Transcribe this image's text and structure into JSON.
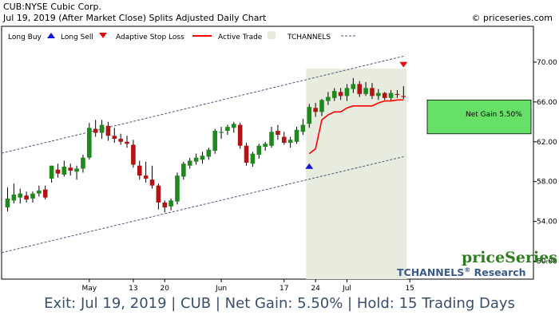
{
  "header": {
    "title": "CUB:NYSE Cubic Corp.",
    "subtitle": "Jul 19, 2019 (After Market Close)  Splits Adjusted Daily Chart",
    "copyright": "© priceseries.com"
  },
  "legend": {
    "long_buy": "Long Buy",
    "long_sell": "Long Sell",
    "adaptive_stop": "Adaptive Stop Loss",
    "active_trade": "Active Trade",
    "tchannels": "TCHANNELS"
  },
  "gain_label": "Net Gain 5.50%",
  "brand": {
    "name": "priceSeries",
    "research": "TCHANNELS",
    "research_sup": "®",
    "research_suffix": " Research"
  },
  "footer": "Exit: Jul 19, 2019 | CUB | Net Gain: 5.50% | Hold: 15 Trading Days",
  "colors": {
    "up": "#1e8a1e",
    "down": "#b01414",
    "stop": "#ff0000",
    "channel": "#4a5a7a",
    "active_bg": "#e7ecdf",
    "gain_fill": "#66e066"
  },
  "chart_data": {
    "type": "candlestick",
    "x_labels": [
      {
        "i": 13,
        "label": "May"
      },
      {
        "i": 20,
        "label": "13"
      },
      {
        "i": 25,
        "label": "20"
      },
      {
        "i": 34,
        "label": "Jun"
      },
      {
        "i": 44,
        "label": "17"
      },
      {
        "i": 49,
        "label": "24"
      },
      {
        "i": 54,
        "label": "Jul"
      },
      {
        "i": 64,
        "label": "15"
      }
    ],
    "y_ticks": [
      "50.00",
      "54.00",
      "58.00",
      "62.00",
      "66.00",
      "70.00"
    ],
    "ylim": [
      48.2,
      73.6
    ],
    "candles": [
      [
        55.4,
        57.4,
        55.0,
        56.3
      ],
      [
        56.1,
        57.8,
        55.8,
        56.7
      ],
      [
        56.4,
        57.3,
        55.8,
        56.8
      ],
      [
        56.6,
        57.0,
        55.9,
        56.2
      ],
      [
        56.3,
        57.0,
        55.9,
        56.8
      ],
      [
        56.8,
        57.6,
        56.5,
        57.1
      ],
      [
        57.2,
        57.6,
        56.2,
        56.4
      ],
      [
        58.3,
        59.6,
        57.9,
        59.6
      ],
      [
        59.2,
        59.8,
        58.4,
        58.8
      ],
      [
        58.7,
        60.1,
        58.5,
        59.5
      ],
      [
        59.4,
        59.8,
        58.6,
        59.1
      ],
      [
        59.0,
        59.6,
        58.2,
        59.3
      ],
      [
        59.3,
        60.7,
        58.9,
        60.4
      ],
      [
        60.4,
        63.9,
        60.2,
        63.4
      ],
      [
        63.3,
        64.2,
        62.5,
        62.9
      ],
      [
        62.9,
        64.2,
        62.3,
        63.7
      ],
      [
        63.6,
        64.0,
        62.1,
        62.6
      ],
      [
        62.6,
        63.4,
        61.9,
        62.3
      ],
      [
        62.3,
        62.8,
        61.7,
        62.0
      ],
      [
        62.0,
        62.6,
        61.4,
        61.8
      ],
      [
        61.7,
        62.2,
        59.4,
        59.7
      ],
      [
        59.6,
        60.1,
        58.2,
        58.6
      ],
      [
        58.6,
        60.0,
        57.9,
        58.3
      ],
      [
        58.2,
        59.6,
        57.3,
        57.6
      ],
      [
        57.6,
        57.8,
        55.2,
        55.9
      ],
      [
        55.9,
        56.1,
        54.9,
        55.4
      ],
      [
        55.5,
        56.3,
        55.1,
        56.1
      ],
      [
        56.0,
        58.9,
        55.7,
        58.6
      ],
      [
        58.5,
        60.0,
        58.2,
        59.8
      ],
      [
        59.6,
        60.4,
        59.3,
        60.1
      ],
      [
        60.0,
        60.8,
        59.7,
        60.4
      ],
      [
        60.2,
        61.0,
        59.8,
        60.6
      ],
      [
        60.5,
        61.4,
        60.2,
        61.2
      ],
      [
        61.1,
        63.3,
        60.8,
        63.1
      ],
      [
        62.9,
        63.5,
        62.3,
        63.0
      ],
      [
        63.1,
        63.7,
        62.7,
        63.5
      ],
      [
        63.4,
        64.0,
        62.9,
        63.8
      ],
      [
        63.7,
        63.9,
        61.3,
        61.6
      ],
      [
        61.6,
        61.9,
        59.6,
        59.9
      ],
      [
        59.8,
        61.0,
        59.5,
        60.8
      ],
      [
        60.7,
        61.8,
        60.3,
        61.6
      ],
      [
        61.5,
        62.0,
        61.1,
        61.8
      ],
      [
        61.6,
        63.5,
        61.4,
        63.0
      ],
      [
        63.1,
        63.7,
        62.2,
        62.7
      ],
      [
        62.5,
        63.0,
        61.7,
        61.9
      ],
      [
        61.9,
        62.5,
        61.4,
        62.2
      ],
      [
        62.0,
        63.5,
        61.8,
        63.2
      ],
      [
        63.0,
        64.3,
        62.7,
        63.7
      ],
      [
        63.8,
        65.8,
        63.4,
        65.5
      ],
      [
        65.4,
        65.9,
        64.5,
        65.0
      ],
      [
        65.0,
        66.3,
        64.6,
        66.2
      ],
      [
        66.1,
        67.0,
        65.7,
        66.5
      ],
      [
        66.4,
        67.4,
        66.1,
        67.1
      ],
      [
        67.0,
        67.4,
        66.2,
        66.6
      ],
      [
        66.6,
        67.8,
        66.1,
        67.4
      ],
      [
        67.3,
        68.4,
        66.9,
        67.8
      ],
      [
        67.8,
        68.1,
        66.5,
        66.8
      ],
      [
        66.8,
        68.0,
        66.6,
        67.4
      ],
      [
        67.4,
        67.9,
        66.3,
        66.6
      ],
      [
        66.6,
        67.3,
        66.2,
        66.9
      ],
      [
        66.9,
        67.0,
        66.2,
        66.4
      ],
      [
        66.4,
        67.2,
        66.1,
        66.9
      ],
      [
        66.8,
        67.2,
        66.4,
        66.7
      ],
      [
        66.6,
        67.6,
        66.3,
        66.5
      ]
    ],
    "stop": {
      "start": 48,
      "values": [
        60.8,
        61.3,
        64.2,
        64.7,
        65.0,
        65.0,
        65.4,
        65.6,
        65.6,
        65.6,
        65.6,
        65.9,
        66.1,
        66.1,
        66.2,
        66.2
      ]
    },
    "channel": {
      "upper": [
        [
          0,
          61.0
        ],
        [
          63,
          70.6
        ]
      ],
      "lower": [
        [
          0,
          51.0
        ],
        [
          63,
          60.5
        ]
      ]
    },
    "buy": {
      "i": 48,
      "price": 59.6
    },
    "sell": {
      "i": 63,
      "price": 69.7
    },
    "active": {
      "from": 48,
      "to": 63
    },
    "gain_box": {
      "top": 66.2,
      "bottom": 62.8
    }
  }
}
